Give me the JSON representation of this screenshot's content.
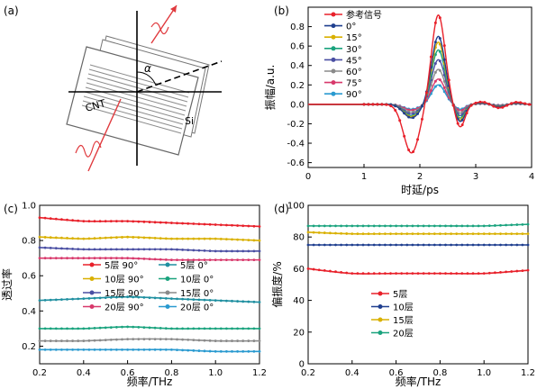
{
  "panels": {
    "a": {
      "tag": "(a)",
      "labels": {
        "cnt": "CNT",
        "si": "Si",
        "alpha": "α"
      }
    }
  },
  "chart_data": [
    {
      "id": "b",
      "tag": "(b)",
      "type": "line",
      "xlabel": "时延/ps",
      "ylabel": "振幅/a.u.",
      "xlim": [
        0,
        4
      ],
      "ylim": [
        -0.65,
        1.0
      ],
      "xticks": [
        0,
        1,
        2,
        3,
        4
      ],
      "yticks": [
        -0.6,
        -0.4,
        -0.2,
        0.0,
        0.2,
        0.4,
        0.6,
        0.8
      ],
      "legend": "top-left",
      "grid": false,
      "series": [
        {
          "name": "参考信号",
          "color": "#e8202a",
          "marker": "circle",
          "peak": 0.92,
          "trough": -0.5
        },
        {
          "name": "0°",
          "color": "#1f3f8f",
          "marker": "circle",
          "peak": 0.7,
          "trough": -0.14
        },
        {
          "name": "15°",
          "color": "#d9b000",
          "marker": "circle",
          "peak": 0.64,
          "trough": -0.13
        },
        {
          "name": "30°",
          "color": "#1aa37e",
          "marker": "circle",
          "peak": 0.56,
          "trough": -0.12
        },
        {
          "name": "45°",
          "color": "#4a4fa3",
          "marker": "circle",
          "peak": 0.46,
          "trough": -0.1
        },
        {
          "name": "60°",
          "color": "#8a8a8a",
          "marker": "circle",
          "peak": 0.36,
          "trough": -0.08
        },
        {
          "name": "75°",
          "color": "#d8386b",
          "marker": "circle",
          "peak": 0.26,
          "trough": -0.06
        },
        {
          "name": "90°",
          "color": "#2a9ad0",
          "marker": "circle",
          "peak": 0.2,
          "trough": -0.05
        }
      ]
    },
    {
      "id": "c",
      "tag": "(c)",
      "type": "line",
      "xlabel": "频率/THz",
      "ylabel": "透过率",
      "xlim": [
        0.2,
        1.2
      ],
      "ylim": [
        0.1,
        1.0
      ],
      "xticks": [
        0.2,
        0.4,
        0.6,
        0.8,
        1.0,
        1.2
      ],
      "yticks": [
        0.2,
        0.4,
        0.6,
        0.8,
        1.0
      ],
      "legend": "center-left",
      "grid": false,
      "series": [
        {
          "name": "5层 90°",
          "color": "#e8202a",
          "x": [
            0.2,
            0.4,
            0.6,
            0.8,
            1.0,
            1.2
          ],
          "y": [
            0.93,
            0.91,
            0.91,
            0.9,
            0.89,
            0.88
          ]
        },
        {
          "name": "5层 0°",
          "color": "#1f8fa0",
          "x": [
            0.2,
            0.4,
            0.6,
            0.8,
            1.0,
            1.2
          ],
          "y": [
            0.46,
            0.47,
            0.48,
            0.47,
            0.46,
            0.45
          ]
        },
        {
          "name": "10层 90°",
          "color": "#d9b000",
          "x": [
            0.2,
            0.4,
            0.6,
            0.8,
            1.0,
            1.2
          ],
          "y": [
            0.82,
            0.81,
            0.82,
            0.81,
            0.81,
            0.8
          ]
        },
        {
          "name": "10层 0°",
          "color": "#1aa37e",
          "x": [
            0.2,
            0.4,
            0.6,
            0.8,
            1.0,
            1.2
          ],
          "y": [
            0.3,
            0.3,
            0.31,
            0.3,
            0.3,
            0.3
          ]
        },
        {
          "name": "15层 90°",
          "color": "#4a4fa3",
          "x": [
            0.2,
            0.4,
            0.6,
            0.8,
            1.0,
            1.2
          ],
          "y": [
            0.76,
            0.75,
            0.75,
            0.75,
            0.74,
            0.74
          ]
        },
        {
          "name": "15层 0°",
          "color": "#8a8a8a",
          "x": [
            0.2,
            0.4,
            0.6,
            0.8,
            1.0,
            1.2
          ],
          "y": [
            0.23,
            0.23,
            0.24,
            0.24,
            0.23,
            0.23
          ]
        },
        {
          "name": "20层 90°",
          "color": "#d8386b",
          "x": [
            0.2,
            0.4,
            0.6,
            0.8,
            1.0,
            1.2
          ],
          "y": [
            0.7,
            0.7,
            0.7,
            0.69,
            0.69,
            0.69
          ]
        },
        {
          "name": "20层 0°",
          "color": "#2a9ad0",
          "x": [
            0.2,
            0.4,
            0.6,
            0.8,
            1.0,
            1.2
          ],
          "y": [
            0.18,
            0.18,
            0.18,
            0.18,
            0.17,
            0.17
          ]
        }
      ]
    },
    {
      "id": "d",
      "tag": "(d)",
      "type": "line",
      "xlabel": "频率/THz",
      "ylabel": "偏振度/%",
      "xlim": [
        0.2,
        1.2
      ],
      "ylim": [
        0,
        100
      ],
      "xticks": [
        0.2,
        0.4,
        0.6,
        0.8,
        1.0,
        1.2
      ],
      "yticks": [
        0,
        20,
        40,
        60,
        80,
        100
      ],
      "legend": "center-left",
      "grid": false,
      "series": [
        {
          "name": "5层",
          "color": "#e8202a",
          "x": [
            0.2,
            0.4,
            0.6,
            0.8,
            1.0,
            1.2
          ],
          "y": [
            60,
            57,
            57,
            57,
            57,
            59
          ]
        },
        {
          "name": "10层",
          "color": "#1f3f8f",
          "x": [
            0.2,
            0.4,
            0.6,
            0.8,
            1.0,
            1.2
          ],
          "y": [
            75,
            75,
            75,
            75,
            75,
            75
          ]
        },
        {
          "name": "15层",
          "color": "#d9b000",
          "x": [
            0.2,
            0.4,
            0.6,
            0.8,
            1.0,
            1.2
          ],
          "y": [
            83,
            82,
            82,
            82,
            82,
            82
          ]
        },
        {
          "name": "20层",
          "color": "#1aa37e",
          "x": [
            0.2,
            0.4,
            0.6,
            0.8,
            1.0,
            1.2
          ],
          "y": [
            87,
            87,
            87,
            87,
            87,
            88
          ]
        }
      ]
    }
  ]
}
